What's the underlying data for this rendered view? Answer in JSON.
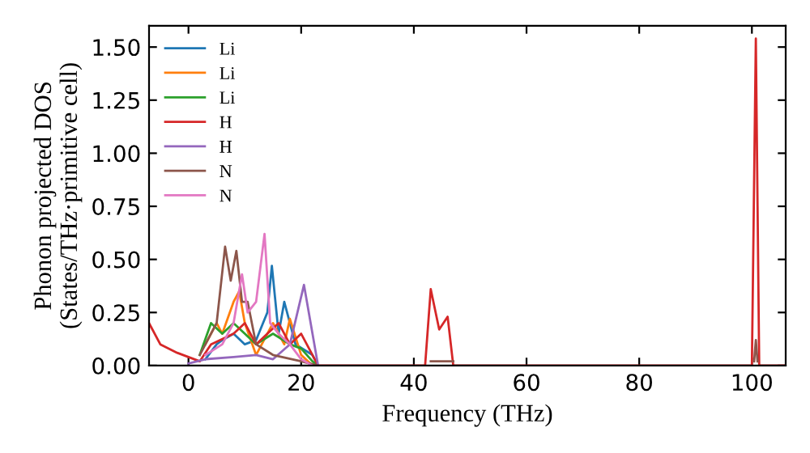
{
  "chart_data": {
    "type": "line",
    "xlabel": "Frequency (THz)",
    "ylabel": "Phonon projected DOS\n(States/THz·primitive cell)",
    "xlim": [
      -7,
      106
    ],
    "ylim": [
      0,
      1.6
    ],
    "xticks": [
      0,
      20,
      40,
      60,
      80,
      100
    ],
    "yticks": [
      {
        "value": 0,
        "label": "0.00"
      },
      {
        "value": 0.25,
        "label": "0.25"
      },
      {
        "value": 0.5,
        "label": "0.50"
      },
      {
        "value": 0.75,
        "label": "0.75"
      },
      {
        "value": 1,
        "label": "1.00"
      },
      {
        "value": 1.25,
        "label": "1.25"
      },
      {
        "value": 1.5,
        "label": "1.50"
      }
    ],
    "grid": false,
    "legend": "top left",
    "marker": "none",
    "line_style": "solid",
    "series": [
      {
        "name": "Li",
        "color": "#1f77b4",
        "x": [
          3,
          5,
          6,
          8,
          10,
          12,
          14,
          14.8,
          16,
          17,
          19,
          22,
          23
        ],
        "values": [
          0.03,
          0.1,
          0.12,
          0.15,
          0.1,
          0.12,
          0.25,
          0.47,
          0.15,
          0.3,
          0.1,
          0.05,
          0
        ]
      },
      {
        "name": "Li",
        "color": "#ff7f0e",
        "x": [
          3,
          5,
          6,
          8,
          9,
          10,
          12,
          15,
          17,
          18,
          20,
          22
        ],
        "values": [
          0.1,
          0.2,
          0.15,
          0.3,
          0.35,
          0.2,
          0.05,
          0.2,
          0.1,
          0.22,
          0.05,
          0
        ]
      },
      {
        "name": "Li",
        "color": "#2ca02c",
        "x": [
          2,
          4,
          6,
          8,
          10,
          12,
          15,
          18,
          20,
          22,
          23
        ],
        "values": [
          0.05,
          0.2,
          0.15,
          0.2,
          0.15,
          0.1,
          0.15,
          0.1,
          0.08,
          0.02,
          0
        ]
      },
      {
        "name": "H",
        "color": "#d62728",
        "x": [
          -7,
          -5,
          -2,
          0,
          2,
          4,
          8,
          10,
          12,
          14,
          16,
          18,
          20,
          21,
          23,
          42,
          43,
          44.5,
          46,
          47,
          100,
          100.7,
          101.3,
          106
        ],
        "values": [
          0.2,
          0.1,
          0.06,
          0.04,
          0.02,
          0.1,
          0.15,
          0.2,
          0.1,
          0.15,
          0.2,
          0.1,
          0.15,
          0.1,
          0,
          0,
          0.36,
          0.17,
          0.23,
          0,
          0,
          1.54,
          0,
          0
        ]
      },
      {
        "name": "H",
        "color": "#9467bd",
        "x": [
          0,
          3,
          8,
          12,
          15,
          18,
          20.5,
          23
        ],
        "values": [
          0.01,
          0.03,
          0.04,
          0.05,
          0.03,
          0.1,
          0.38,
          0
        ]
      },
      {
        "name": "N",
        "color": "#8c564b",
        "x": [
          2,
          5,
          6.5,
          7.5,
          8.5,
          9.5,
          10.5,
          12,
          15,
          20,
          23,
          30,
          43,
          47,
          60,
          100.4,
          100.7,
          101
        ],
        "values": [
          0.05,
          0.2,
          0.56,
          0.4,
          0.54,
          0.3,
          0.3,
          0.1,
          0.05,
          0.02,
          0,
          null,
          0.02,
          0.02,
          null,
          0.02,
          0.12,
          0.02
        ]
      },
      {
        "name": "N",
        "color": "#e377c2",
        "x": [
          3,
          6,
          8,
          9.5,
          10.5,
          12,
          13.5,
          14.5,
          16,
          18,
          20,
          22
        ],
        "values": [
          0.05,
          0.1,
          0.2,
          0.43,
          0.25,
          0.3,
          0.62,
          0.2,
          0.15,
          0.1,
          0.03,
          0
        ]
      }
    ]
  }
}
